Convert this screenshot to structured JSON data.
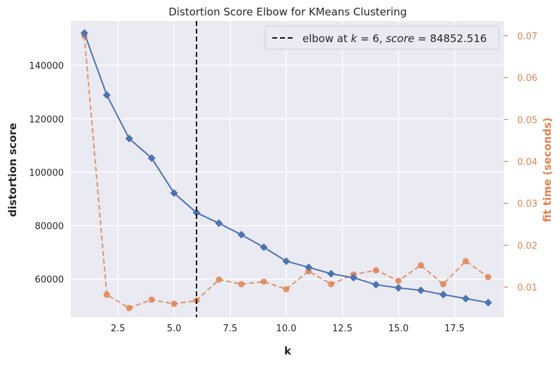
{
  "chart_data": {
    "type": "line",
    "title": "Distortion Score Elbow for KMeans Clustering",
    "xlabel": "k",
    "ylabel": "distortion score",
    "y2label": "fit time (seconds)",
    "xlim": [
      0.4,
      19.7
    ],
    "ylim": [
      45700,
      156600
    ],
    "y2lim": [
      0.0028,
      0.0735
    ],
    "x_ticks": [
      2.5,
      5.0,
      7.5,
      10.0,
      12.5,
      15.0,
      17.5
    ],
    "x_tick_labels": [
      "2.5",
      "5.0",
      "7.5",
      "10.0",
      "12.5",
      "15.0",
      "17.5"
    ],
    "y_ticks": [
      60000,
      80000,
      100000,
      120000,
      140000
    ],
    "y_tick_labels": [
      "60000",
      "80000",
      "100000",
      "120000",
      "140000"
    ],
    "y2_ticks": [
      0.01,
      0.02,
      0.03,
      0.04,
      0.05,
      0.06,
      0.07
    ],
    "y2_tick_labels": [
      "0.01",
      "0.02",
      "0.03",
      "0.04",
      "0.05",
      "0.06",
      "0.07"
    ],
    "grid": true,
    "legend_position": "top-right",
    "x": [
      1,
      2,
      3,
      4,
      5,
      6,
      7,
      8,
      9,
      10,
      11,
      12,
      13,
      14,
      15,
      16,
      17,
      18,
      19
    ],
    "series": [
      {
        "axis": "left",
        "color": "#4c72b0",
        "marker": "diamond",
        "values": [
          152100,
          128900,
          112600,
          105300,
          92200,
          84852.516,
          80900,
          76600,
          71900,
          66700,
          64400,
          62000,
          60500,
          57900,
          56700,
          55800,
          54200,
          52700,
          51200
        ]
      },
      {
        "axis": "right",
        "color": "#dd8452",
        "marker": "circle",
        "dashed": true,
        "values": [
          0.07,
          0.0082,
          0.005,
          0.007,
          0.006,
          0.0068,
          0.0118,
          0.0107,
          0.0113,
          0.0095,
          0.0138,
          0.0107,
          0.013,
          0.014,
          0.0115,
          0.0152,
          0.0107,
          0.0162,
          0.0124
        ]
      }
    ],
    "elbow": {
      "k": 6,
      "score": "84852.516"
    },
    "legend": {
      "prefix": "elbow at ",
      "k_var": "k",
      "eq1": " = 6, ",
      "score_var": "score",
      "eq2": " = 84852.516"
    }
  },
  "colors": {
    "plot_bg": "#eaeaf2",
    "grid": "#ffffff",
    "text": "#262626",
    "distortion": "#4c72b0",
    "fit_time": "#dd8452"
  }
}
